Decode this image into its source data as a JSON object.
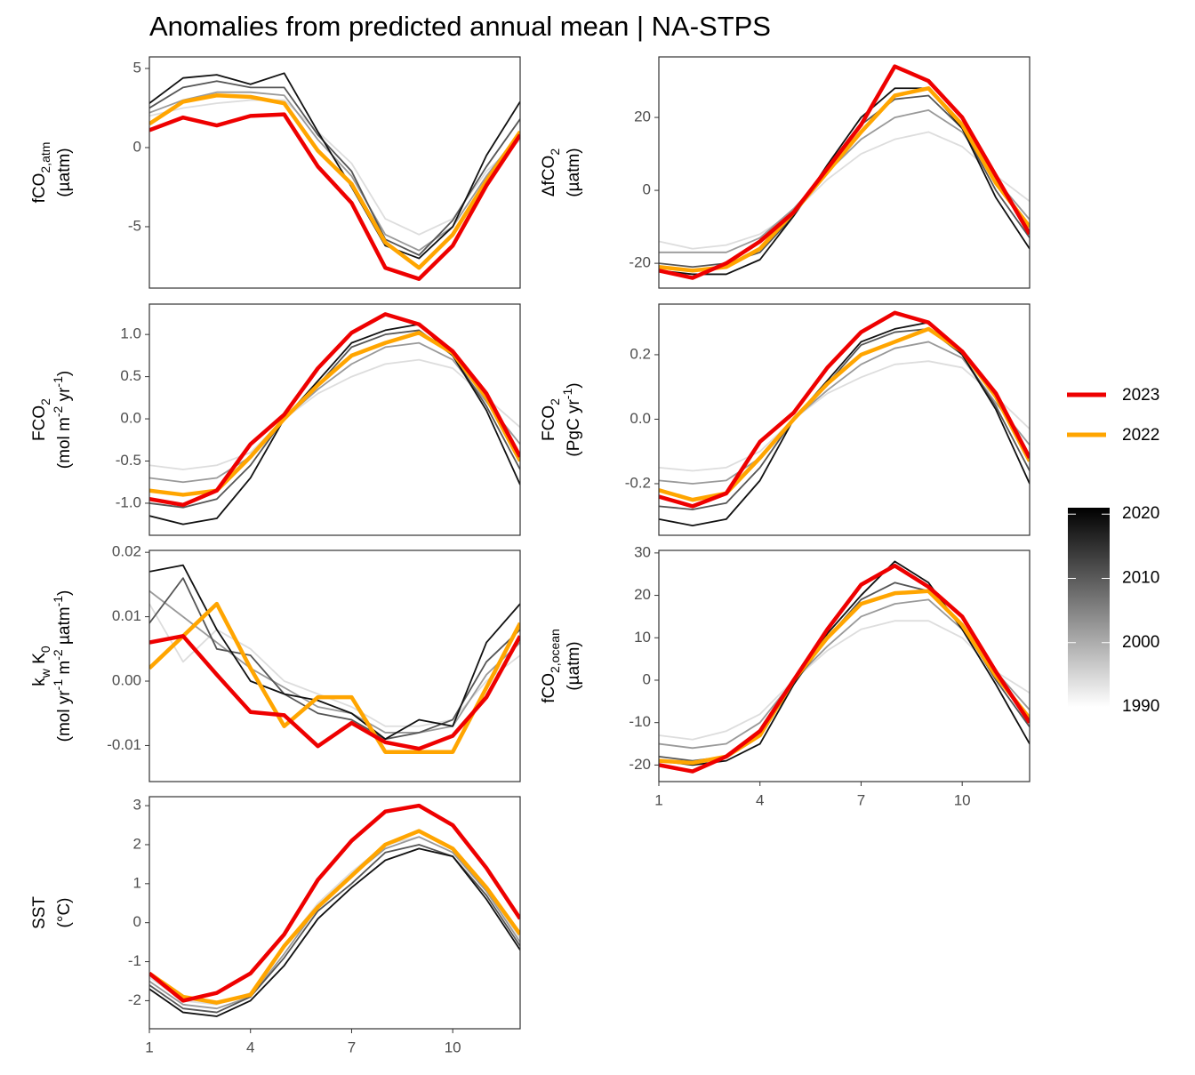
{
  "title": "Anomalies from predicted annual mean | NA-STPS",
  "colorbar": {
    "ticks": [
      1990,
      2000,
      2010,
      2020
    ],
    "lim": [
      1990,
      2021
    ],
    "colors": [
      "#ffffff",
      "#000000"
    ]
  },
  "chart_data": [
    {
      "type": "line",
      "ylabel": [
        [
          "fCO",
          {
            "sub": "2,atm"
          }
        ],
        [
          "(µatm)"
        ]
      ],
      "x": [
        1,
        2,
        3,
        4,
        5,
        6,
        7,
        8,
        9,
        10,
        11,
        12
      ],
      "xlim": [
        1,
        12
      ],
      "ylim": [
        -8.88,
        5.73
      ],
      "yticks": [
        -5,
        0,
        5
      ],
      "series": [
        {
          "name": "2023",
          "color": "#ee0000",
          "values": [
            1.1,
            1.9,
            1.4,
            2.0,
            2.1,
            -1.2,
            -3.5,
            -7.6,
            -8.3,
            -6.2,
            -2.4,
            0.8
          ]
        },
        {
          "name": "2022",
          "color": "#ffa500",
          "values": [
            1.5,
            2.9,
            3.3,
            3.2,
            2.8,
            -0.2,
            -2.3,
            -6.0,
            -7.6,
            -5.5,
            -2.1,
            1.0
          ]
        },
        {
          "color": "#dddddd",
          "values": [
            2.0,
            2.5,
            2.8,
            3.0,
            3.0,
            1.0,
            -1.0,
            -4.5,
            -5.5,
            -4.5,
            -1.5,
            0.5
          ]
        },
        {
          "color": "#999999",
          "values": [
            2.2,
            3.0,
            3.5,
            3.5,
            3.3,
            0.5,
            -1.8,
            -5.5,
            -6.5,
            -5.0,
            -1.8,
            1.0
          ]
        },
        {
          "color": "#555555",
          "values": [
            2.5,
            3.8,
            4.2,
            3.8,
            3.8,
            0.8,
            -1.5,
            -5.8,
            -6.8,
            -4.6,
            -1.2,
            1.8
          ]
        },
        {
          "color": "#111111",
          "values": [
            2.8,
            4.4,
            4.6,
            4.0,
            4.7,
            1.0,
            -2.5,
            -6.2,
            -7.0,
            -5.0,
            -0.5,
            2.9
          ]
        }
      ]
    },
    {
      "type": "line",
      "ylabel": [
        [
          "ΔfCO",
          {
            "sub": "2"
          }
        ],
        [
          "(µatm)"
        ]
      ],
      "x": [
        1,
        2,
        3,
        4,
        5,
        6,
        7,
        8,
        9,
        10,
        11,
        12
      ],
      "xlim": [
        1,
        12
      ],
      "ylim": [
        -26.8,
        36.6
      ],
      "yticks": [
        -20,
        0,
        20
      ],
      "series": [
        {
          "name": "2023",
          "color": "#ee0000",
          "values": [
            -22,
            -24,
            -20,
            -14,
            -6,
            6,
            18,
            34,
            30,
            20,
            4,
            -12
          ]
        },
        {
          "name": "2022",
          "color": "#ffa500",
          "values": [
            -21,
            -22,
            -21,
            -16,
            -6,
            5,
            16,
            26,
            28,
            18,
            2,
            -10
          ]
        },
        {
          "color": "#dddddd",
          "values": [
            -14,
            -16,
            -15,
            -12,
            -6,
            3,
            10,
            14,
            16,
            12,
            4,
            -3
          ]
        },
        {
          "color": "#999999",
          "values": [
            -17,
            -17,
            -17,
            -13,
            -5,
            5,
            14,
            20,
            22,
            16,
            3,
            -8
          ]
        },
        {
          "color": "#555555",
          "values": [
            -20,
            -21,
            -20,
            -17,
            -7,
            6,
            18,
            25,
            26,
            17,
            0,
            -13
          ]
        },
        {
          "color": "#111111",
          "values": [
            -22,
            -23,
            -23,
            -19,
            -7,
            7,
            20,
            28,
            28,
            17,
            -2,
            -16
          ]
        }
      ]
    },
    {
      "type": "line",
      "ylabel": [
        [
          "FCO",
          {
            "sub": "2"
          }
        ],
        [
          "(mol m",
          {
            "sup": "-2"
          },
          " yr",
          {
            "sup": "-1"
          },
          ")"
        ]
      ],
      "x": [
        1,
        2,
        3,
        4,
        5,
        6,
        7,
        8,
        9,
        10,
        11,
        12
      ],
      "xlim": [
        1,
        12
      ],
      "ylim": [
        -1.38,
        1.36
      ],
      "yticks": [
        {
          "value": -1,
          "label": "-1.0"
        },
        -0.5,
        {
          "value": 0,
          "label": "0.0"
        },
        0.5,
        {
          "value": 1,
          "label": "1.0"
        }
      ],
      "series": [
        {
          "name": "2023",
          "color": "#ee0000",
          "values": [
            -0.95,
            -1.02,
            -0.85,
            -0.3,
            0.05,
            0.6,
            1.02,
            1.24,
            1.12,
            0.8,
            0.3,
            -0.45
          ]
        },
        {
          "name": "2022",
          "color": "#ffa500",
          "values": [
            -0.85,
            -0.9,
            -0.85,
            -0.45,
            0.0,
            0.4,
            0.75,
            0.9,
            1.02,
            0.78,
            0.25,
            -0.5
          ]
        },
        {
          "color": "#dddddd",
          "values": [
            -0.55,
            -0.6,
            -0.55,
            -0.4,
            0,
            0.3,
            0.5,
            0.65,
            0.7,
            0.6,
            0.25,
            -0.1
          ]
        },
        {
          "color": "#999999",
          "values": [
            -0.7,
            -0.75,
            -0.7,
            -0.45,
            0,
            0.35,
            0.65,
            0.85,
            0.9,
            0.7,
            0.2,
            -0.3
          ]
        },
        {
          "color": "#555555",
          "values": [
            -1.0,
            -1.05,
            -0.95,
            -0.55,
            0,
            0.4,
            0.85,
            1.0,
            1.05,
            0.75,
            0.15,
            -0.6
          ]
        },
        {
          "color": "#111111",
          "values": [
            -1.15,
            -1.25,
            -1.18,
            -0.7,
            0,
            0.45,
            0.9,
            1.05,
            1.12,
            0.75,
            0.1,
            -0.78
          ]
        }
      ]
    },
    {
      "type": "line",
      "ylabel": [
        [
          "FCO",
          {
            "sub": "2"
          }
        ],
        [
          "(PgC yr",
          {
            "sup": "-1"
          },
          ")"
        ]
      ],
      "x": [
        1,
        2,
        3,
        4,
        5,
        6,
        7,
        8,
        9,
        10,
        11,
        12
      ],
      "xlim": [
        1,
        12
      ],
      "ylim": [
        -0.36,
        0.357
      ],
      "yticks": [
        -0.2,
        {
          "value": 0,
          "label": "0.0"
        },
        0.2
      ],
      "series": [
        {
          "name": "2023",
          "color": "#ee0000",
          "values": [
            -0.24,
            -0.27,
            -0.23,
            -0.07,
            0.02,
            0.16,
            0.27,
            0.33,
            0.3,
            0.21,
            0.08,
            -0.12
          ]
        },
        {
          "name": "2022",
          "color": "#ffa500",
          "values": [
            -0.22,
            -0.25,
            -0.23,
            -0.12,
            0.0,
            0.11,
            0.2,
            0.24,
            0.28,
            0.21,
            0.07,
            -0.13
          ]
        },
        {
          "color": "#dddddd",
          "values": [
            -0.15,
            -0.16,
            -0.15,
            -0.1,
            0,
            0.08,
            0.13,
            0.17,
            0.18,
            0.16,
            0.07,
            -0.03
          ]
        },
        {
          "color": "#999999",
          "values": [
            -0.19,
            -0.2,
            -0.19,
            -0.12,
            0,
            0.09,
            0.17,
            0.22,
            0.24,
            0.19,
            0.05,
            -0.08
          ]
        },
        {
          "color": "#555555",
          "values": [
            -0.27,
            -0.28,
            -0.26,
            -0.15,
            0,
            0.11,
            0.23,
            0.27,
            0.28,
            0.2,
            0.04,
            -0.16
          ]
        },
        {
          "color": "#111111",
          "values": [
            -0.31,
            -0.33,
            -0.31,
            -0.19,
            0,
            0.12,
            0.24,
            0.28,
            0.3,
            0.2,
            0.03,
            -0.2
          ]
        }
      ]
    },
    {
      "type": "line",
      "ylabel": [
        [
          "k",
          {
            "sub": "w"
          },
          " K",
          {
            "sub": "0"
          }
        ],
        [
          "(mol yr",
          {
            "sup": "-1"
          },
          " m",
          {
            "sup": "-2"
          },
          " µatm",
          {
            "sup": "-1"
          },
          ")"
        ]
      ],
      "x": [
        1,
        2,
        3,
        4,
        5,
        6,
        7,
        8,
        9,
        10,
        11,
        12
      ],
      "xlim": [
        1,
        12
      ],
      "ylim": [
        -0.0156,
        0.0203
      ],
      "yticks": [
        -0.01,
        {
          "value": 0,
          "label": "0.00"
        },
        0.01,
        0.02
      ],
      "series": [
        {
          "name": "2023",
          "color": "#ee0000",
          "values": [
            0.006,
            0.007,
            0.001,
            -0.0048,
            -0.0053,
            -0.0101,
            -0.0065,
            -0.0095,
            -0.0105,
            -0.0085,
            -0.0025,
            0.007
          ]
        },
        {
          "name": "2022",
          "color": "#ffa500",
          "values": [
            0.002,
            0.007,
            0.012,
            0.002,
            -0.007,
            -0.0025,
            -0.0025,
            -0.011,
            -0.011,
            -0.011,
            -0.001,
            0.009
          ]
        },
        {
          "color": "#dddddd",
          "values": [
            0.012,
            0.003,
            0.008,
            0.005,
            0.0,
            -0.002,
            -0.004,
            -0.007,
            -0.007,
            -0.006,
            0.0,
            0.004
          ]
        },
        {
          "color": "#999999",
          "values": [
            0.014,
            0.01,
            0.006,
            0.002,
            -0.001,
            -0.004,
            -0.005,
            -0.008,
            -0.008,
            -0.007,
            0.001,
            0.006
          ]
        },
        {
          "color": "#555555",
          "values": [
            0.009,
            0.016,
            0.005,
            0.004,
            -0.002,
            -0.005,
            -0.006,
            -0.009,
            -0.008,
            -0.006,
            0.003,
            0.008
          ]
        },
        {
          "color": "#111111",
          "values": [
            0.017,
            0.018,
            0.008,
            0.0,
            -0.002,
            -0.003,
            -0.005,
            -0.009,
            -0.006,
            -0.007,
            0.006,
            0.012
          ]
        }
      ]
    },
    {
      "type": "line",
      "ylabel": [
        [
          "fCO",
          {
            "sub": "2,ocean"
          }
        ],
        [
          "(µatm)"
        ]
      ],
      "x": [
        1,
        2,
        3,
        4,
        5,
        6,
        7,
        8,
        9,
        10,
        11,
        12
      ],
      "xlim": [
        1,
        12
      ],
      "xticks": [
        1,
        4,
        7,
        10
      ],
      "ylim": [
        -23.9,
        30.6
      ],
      "yticks": [
        -20,
        -10,
        0,
        10,
        20,
        30
      ],
      "series": [
        {
          "name": "2023",
          "color": "#ee0000",
          "values": [
            -20,
            -21.5,
            -18,
            -12,
            0,
            12,
            22.5,
            27,
            22,
            15,
            2,
            -10
          ]
        },
        {
          "name": "2022",
          "color": "#ffa500",
          "values": [
            -19,
            -19.5,
            -18,
            -13,
            0,
            10,
            18,
            20.5,
            21,
            13,
            1,
            -9
          ]
        },
        {
          "color": "#dddddd",
          "values": [
            -13,
            -14,
            -12,
            -8,
            0,
            7,
            12,
            14,
            14,
            10,
            2,
            -3
          ]
        },
        {
          "color": "#999999",
          "values": [
            -15,
            -16,
            -15,
            -10,
            0,
            8,
            15,
            18,
            19,
            12,
            2,
            -7
          ]
        },
        {
          "color": "#555555",
          "values": [
            -18,
            -19,
            -18,
            -13,
            -1,
            10,
            19,
            23,
            21,
            13,
            0,
            -11
          ]
        },
        {
          "color": "#111111",
          "values": [
            -19,
            -20,
            -19,
            -15,
            -1,
            11,
            20,
            28,
            23,
            12,
            -1,
            -15
          ]
        }
      ]
    },
    {
      "type": "line",
      "ylabel": [
        [
          "SST"
        ],
        [
          "(°C)"
        ]
      ],
      "x": [
        1,
        2,
        3,
        4,
        5,
        6,
        7,
        8,
        9,
        10,
        11,
        12
      ],
      "xlim": [
        1,
        12
      ],
      "xticks": [
        1,
        4,
        7,
        10
      ],
      "ylim": [
        -2.72,
        3.23
      ],
      "yticks": [
        -2,
        -1,
        0,
        1,
        2,
        3
      ],
      "series": [
        {
          "name": "2023",
          "color": "#ee0000",
          "values": [
            -1.3,
            -2.0,
            -1.8,
            -1.3,
            -0.3,
            1.1,
            2.1,
            2.85,
            3.0,
            2.5,
            1.4,
            0.1
          ]
        },
        {
          "name": "2022",
          "color": "#ffa500",
          "values": [
            -1.3,
            -1.9,
            -2.05,
            -1.85,
            -0.6,
            0.4,
            1.2,
            2.0,
            2.35,
            1.9,
            0.9,
            -0.3
          ]
        },
        {
          "color": "#dddddd",
          "values": [
            -1.4,
            -2.0,
            -2.1,
            -1.8,
            -0.6,
            0.5,
            1.3,
            2.0,
            2.2,
            1.8,
            0.8,
            -0.4
          ]
        },
        {
          "color": "#999999",
          "values": [
            -1.5,
            -2.1,
            -2.2,
            -1.9,
            -0.8,
            0.4,
            1.2,
            1.9,
            2.2,
            1.8,
            0.8,
            -0.5
          ]
        },
        {
          "color": "#555555",
          "values": [
            -1.6,
            -2.2,
            -2.3,
            -1.9,
            -0.9,
            0.3,
            1.0,
            1.8,
            2.0,
            1.7,
            0.7,
            -0.6
          ]
        },
        {
          "color": "#111111",
          "values": [
            -1.7,
            -2.3,
            -2.4,
            -2.0,
            -1.1,
            0.1,
            0.9,
            1.6,
            1.9,
            1.7,
            0.6,
            -0.7
          ]
        }
      ]
    }
  ]
}
